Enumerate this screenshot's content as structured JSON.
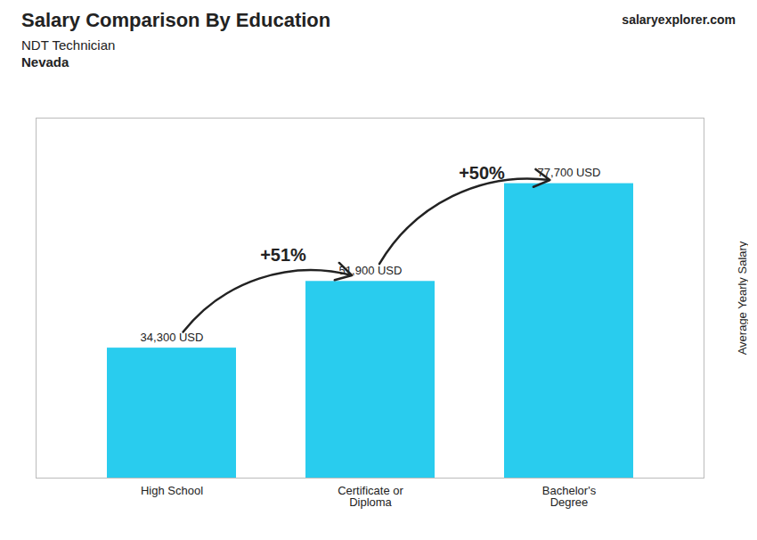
{
  "chart_data": {
    "type": "bar",
    "title": "Salary Comparison By Education",
    "subtitle": [
      "NDT Technician",
      "Nevada"
    ],
    "categories": [
      "High School",
      "Certificate or\nDiploma",
      "Bachelor's\nDegree"
    ],
    "values": [
      34300,
      51900,
      77700
    ],
    "value_labels": [
      "34,300 USD",
      "51,900 USD",
      "77,700 USD"
    ],
    "color": "#29CCEE",
    "ylabel": "Average Yearly Salary",
    "ylim": [
      0,
      95000
    ],
    "yticks": [],
    "tick_labels": "x",
    "data_labels": true,
    "annotations": [
      {
        "text": "+51%",
        "from": "High School",
        "to": "Certificate or\nDiploma"
      },
      {
        "text": "+50%",
        "from": "Certificate or\nDiploma",
        "to": "Bachelor's\nDegree"
      },
      {
        "text": "salaryexplorer.com"
      }
    ]
  }
}
